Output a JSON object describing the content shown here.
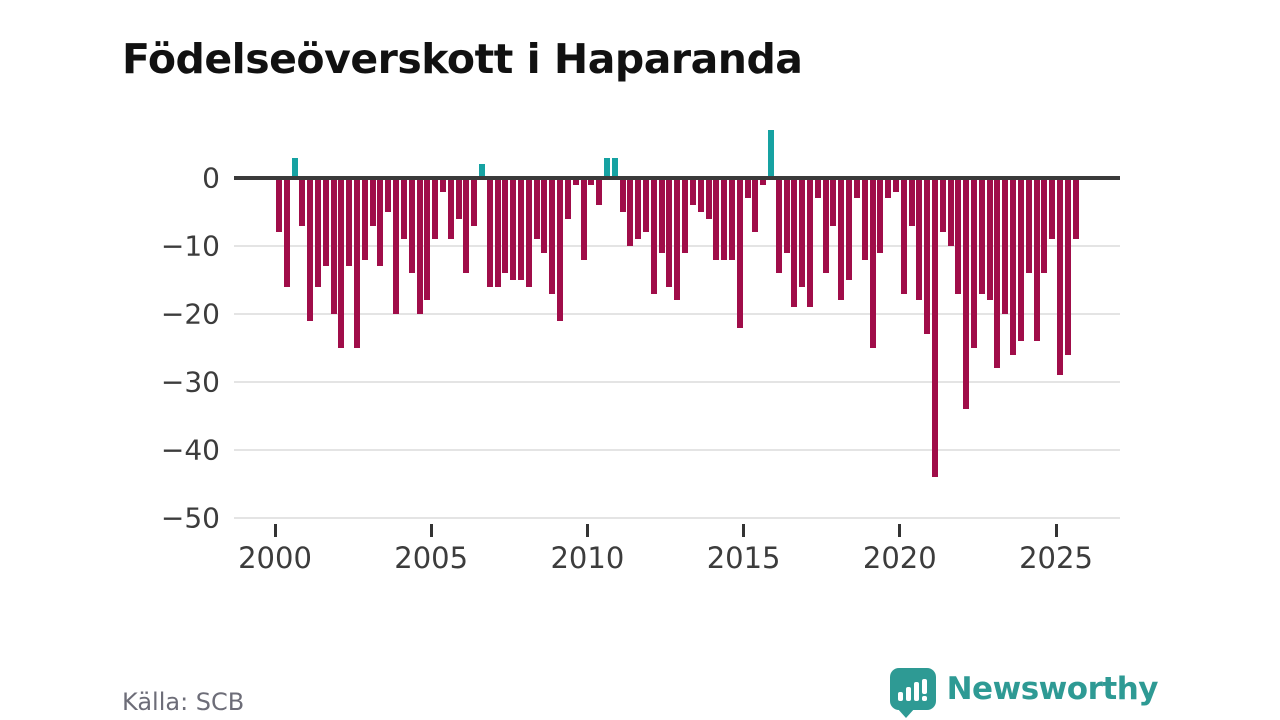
{
  "title": "Födelseöverskott i Haparanda",
  "footer": {
    "source": "Källa: SCB"
  },
  "logo": {
    "text": "Newsworthy",
    "color": "#2E9A94"
  },
  "chart_data": {
    "type": "bar",
    "title": "Födelseöverskott i Haparanda",
    "frequency": "quarterly",
    "start_year": 2000,
    "start_quarter": 1,
    "end_year": 2025,
    "end_quarter": 3,
    "xlabel": "",
    "ylabel": "",
    "ylim": [
      -50,
      8
    ],
    "grid": "horizontal",
    "legend": "none",
    "y_ticks": [
      {
        "value": 0,
        "label": "0"
      },
      {
        "value": -10,
        "label": "−10"
      },
      {
        "value": -20,
        "label": "−20"
      },
      {
        "value": -30,
        "label": "−30"
      },
      {
        "value": -40,
        "label": "−40"
      },
      {
        "value": -50,
        "label": "−50"
      }
    ],
    "x_ticks": [
      {
        "year": 2000,
        "label": "2000"
      },
      {
        "year": 2005,
        "label": "2005"
      },
      {
        "year": 2010,
        "label": "2010"
      },
      {
        "year": 2015,
        "label": "2015"
      },
      {
        "year": 2020,
        "label": "2020"
      },
      {
        "year": 2025,
        "label": "2025"
      }
    ],
    "colors": {
      "negative": "#A00D49",
      "positive": "#16A2A2",
      "zero_line": "#3a3a3a",
      "gridline": "#e4e4e4"
    },
    "series": [
      {
        "name": "Födelseöverskott",
        "values": [
          -8,
          -16,
          3,
          -7,
          -21,
          -16,
          -13,
          -20,
          -25,
          -13,
          -25,
          -12,
          -7,
          -13,
          -5,
          -20,
          -9,
          -14,
          -20,
          -18,
          -9,
          -2,
          -9,
          -6,
          -14,
          -7,
          2,
          -16,
          -16,
          -14,
          -15,
          -15,
          -16,
          -9,
          -11,
          -17,
          -21,
          -6,
          -1,
          -12,
          -1,
          -4,
          3,
          3,
          -5,
          -10,
          -9,
          -8,
          -17,
          -11,
          -16,
          -18,
          -11,
          -4,
          -5,
          -6,
          -12,
          -12,
          -12,
          -22,
          -3,
          -8,
          -1,
          7,
          -14,
          -11,
          -19,
          -16,
          -19,
          -3,
          -14,
          -7,
          -18,
          -15,
          -3,
          -12,
          -25,
          -11,
          -3,
          -2,
          -17,
          -7,
          -18,
          -23,
          -44,
          -8,
          -10,
          -17,
          -34,
          -25,
          -17,
          -18,
          -28,
          -20,
          -26,
          -24,
          -14,
          -24,
          -14,
          -9,
          -29,
          -26,
          -9
        ]
      }
    ]
  }
}
